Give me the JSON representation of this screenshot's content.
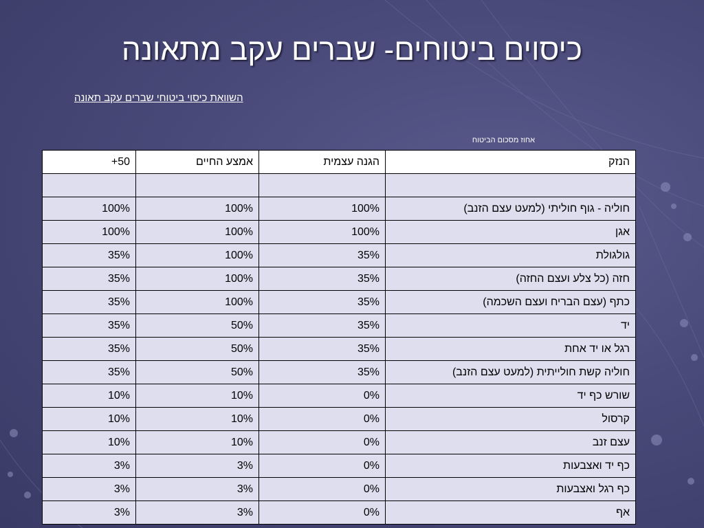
{
  "title": "כיסוים ביטוחים- שברים עקב מתאונה",
  "subtitle": "השוואת כיסוי ביטוחי שברים עקב תאונה",
  "table_caption": "אחוז מסכום הביטוח",
  "columns": [
    "הנזק",
    "הגנה עצמית",
    "אמצע החיים",
    "50+"
  ],
  "rows": [
    [
      "",
      "",
      "",
      ""
    ],
    [
      "חוליה - גוף חוליתי (למעט עצם הזנב)",
      "100%",
      "100%",
      "100%"
    ],
    [
      "אגן",
      "100%",
      "100%",
      "100%"
    ],
    [
      "גולגולת",
      "35%",
      "100%",
      "35%"
    ],
    [
      "חזה (כל צלע ועצם החזה)",
      "35%",
      "100%",
      "35%"
    ],
    [
      "כתף (עצם הבריח ועצם השכמה)",
      "35%",
      "100%",
      "35%"
    ],
    [
      "יד",
      "35%",
      "50%",
      "35%"
    ],
    [
      "רגל או יד אחת",
      "35%",
      "50%",
      "35%"
    ],
    [
      "חוליה קשת חולייתית (למעט עצם הזנב)",
      "35%",
      "50%",
      "35%"
    ],
    [
      "שורש כף יד",
      "0%",
      "10%",
      "10%"
    ],
    [
      "קרסול",
      "0%",
      "10%",
      "10%"
    ],
    [
      "עצם זנב",
      "0%",
      "10%",
      "10%"
    ],
    [
      "כף יד ואצבעות",
      "0%",
      "3%",
      "3%"
    ],
    [
      "כף רגל ואצבעות",
      "0%",
      "3%",
      "3%"
    ],
    [
      "אף",
      "0%",
      "3%",
      "3%"
    ]
  ],
  "colors": {
    "background": "#4a4a7a",
    "header_row": "#ffffff",
    "body_rows": "#dedeef",
    "text_light": "#ffffff"
  }
}
